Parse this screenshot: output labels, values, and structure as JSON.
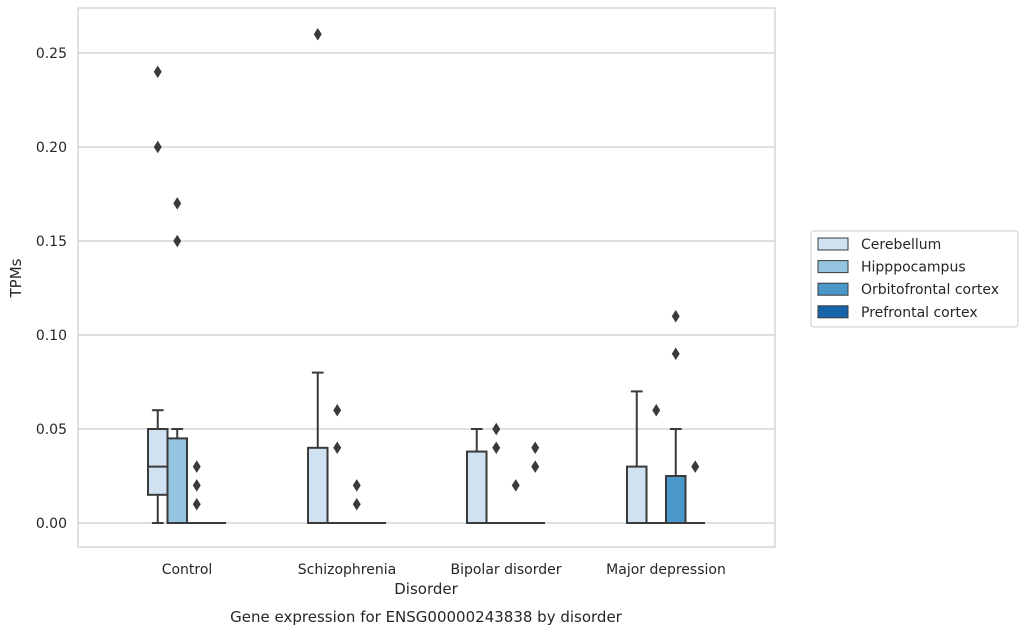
{
  "chart_data": {
    "type": "box",
    "title": "",
    "caption": "Gene expression for ENSG00000243838 by disorder",
    "xlabel": "Disorder",
    "ylabel": "TPMs",
    "ylim": [
      -0.013,
      0.274
    ],
    "yticks": [
      0.0,
      0.05,
      0.1,
      0.15,
      0.2,
      0.25
    ],
    "ytick_labels": [
      "0.00",
      "0.05",
      "0.10",
      "0.15",
      "0.20",
      "0.25"
    ],
    "grid": "horizontal",
    "legend_position": "right",
    "categories": [
      "Control",
      "Schizophrenia",
      "Bipolar disorder",
      "Major depression"
    ],
    "series": [
      {
        "name": "Cerebellum",
        "color": "#d0e1f2",
        "boxes": [
          {
            "q1": 0.015,
            "median": 0.03,
            "q3": 0.05,
            "whisker_low": 0.0,
            "whisker_high": 0.06,
            "outliers": [
              0.24,
              0.2
            ]
          },
          {
            "q1": 0.0,
            "median": 0.0,
            "q3": 0.04,
            "whisker_low": 0.0,
            "whisker_high": 0.08,
            "outliers": [
              0.26
            ]
          },
          {
            "q1": 0.0,
            "median": 0.0,
            "q3": 0.038,
            "whisker_low": 0.0,
            "whisker_high": 0.05,
            "outliers": []
          },
          {
            "q1": 0.0,
            "median": 0.0,
            "q3": 0.03,
            "whisker_low": 0.0,
            "whisker_high": 0.07,
            "outliers": []
          }
        ]
      },
      {
        "name": "Hipppocampus",
        "color": "#94c4df",
        "boxes": [
          {
            "q1": 0.0,
            "median": 0.0,
            "q3": 0.045,
            "whisker_low": 0.0,
            "whisker_high": 0.05,
            "outliers": [
              0.17,
              0.15
            ]
          },
          {
            "q1": 0.0,
            "median": 0.0,
            "q3": 0.0,
            "whisker_low": 0.0,
            "whisker_high": 0.0,
            "outliers": [
              0.06,
              0.04
            ]
          },
          {
            "q1": 0.0,
            "median": 0.0,
            "q3": 0.0,
            "whisker_low": 0.0,
            "whisker_high": 0.0,
            "outliers": [
              0.05,
              0.04
            ]
          },
          {
            "q1": 0.0,
            "median": 0.0,
            "q3": 0.0,
            "whisker_low": 0.0,
            "whisker_high": 0.0,
            "outliers": [
              0.06
            ]
          }
        ]
      },
      {
        "name": "Orbitofrontal cortex",
        "color": "#4a98c9",
        "boxes": [
          {
            "q1": 0.0,
            "median": 0.0,
            "q3": 0.0,
            "whisker_low": 0.0,
            "whisker_high": 0.0,
            "outliers": [
              0.03,
              0.02,
              0.01
            ]
          },
          {
            "q1": 0.0,
            "median": 0.0,
            "q3": 0.0,
            "whisker_low": 0.0,
            "whisker_high": 0.0,
            "outliers": [
              0.02,
              0.01
            ]
          },
          {
            "q1": 0.0,
            "median": 0.0,
            "q3": 0.0,
            "whisker_low": 0.0,
            "whisker_high": 0.0,
            "outliers": [
              0.02
            ]
          },
          {
            "q1": 0.0,
            "median": 0.0,
            "q3": 0.025,
            "whisker_low": 0.0,
            "whisker_high": 0.05,
            "outliers": [
              0.11,
              0.09
            ]
          }
        ]
      },
      {
        "name": "Prefrontal cortex",
        "color": "#1764ab",
        "boxes": [
          {
            "q1": 0.0,
            "median": 0.0,
            "q3": 0.0,
            "whisker_low": 0.0,
            "whisker_high": 0.0,
            "outliers": []
          },
          {
            "q1": 0.0,
            "median": 0.0,
            "q3": 0.0,
            "whisker_low": 0.0,
            "whisker_high": 0.0,
            "outliers": []
          },
          {
            "q1": 0.0,
            "median": 0.0,
            "q3": 0.0,
            "whisker_low": 0.0,
            "whisker_high": 0.0,
            "outliers": [
              0.04,
              0.03
            ]
          },
          {
            "q1": 0.0,
            "median": 0.0,
            "q3": 0.0,
            "whisker_low": 0.0,
            "whisker_high": 0.0,
            "outliers": [
              0.03
            ]
          }
        ]
      }
    ]
  }
}
